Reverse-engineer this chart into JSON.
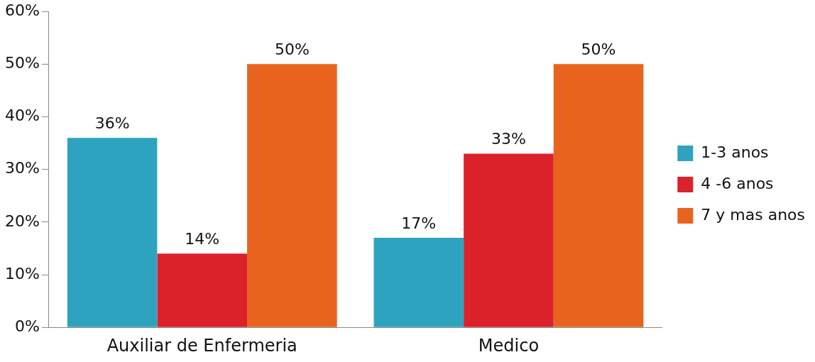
{
  "chart_data": {
    "type": "bar",
    "categories": [
      "Auxiliar de Enfermeria",
      "Medico"
    ],
    "series": [
      {
        "name": "1-3 anos",
        "color": "#2ea3c0",
        "values": [
          36,
          17
        ],
        "value_labels": [
          "36%",
          "17%"
        ]
      },
      {
        "name": "4 -6 anos",
        "color": "#db222a",
        "values": [
          14,
          33
        ],
        "value_labels": [
          "14%",
          "33%"
        ]
      },
      {
        "name": "7 y mas anos",
        "color": "#e8641e",
        "values": [
          50,
          50
        ],
        "value_labels": [
          "50%",
          "50%"
        ]
      }
    ],
    "ylim": [
      0,
      60
    ],
    "yticks": [
      {
        "value": 0,
        "label": "0%"
      },
      {
        "value": 10,
        "label": "10%"
      },
      {
        "value": 20,
        "label": "20%"
      },
      {
        "value": 30,
        "label": "30%"
      },
      {
        "value": 40,
        "label": "40%"
      },
      {
        "value": 50,
        "label": "50%"
      },
      {
        "value": 60,
        "label": "60%"
      }
    ],
    "grid": false,
    "legend": "right"
  }
}
